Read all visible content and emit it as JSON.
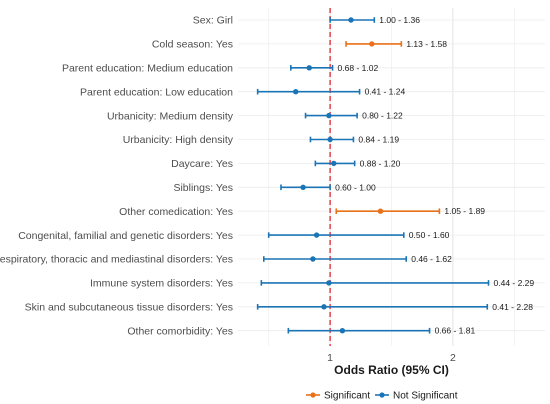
{
  "chart_data": {
    "type": "forest",
    "xlabel": "Odds Ratio (95% CI)",
    "xlim": [
      0.25,
      2.75
    ],
    "xticks": [
      1,
      2
    ],
    "reference_line": 1,
    "grid": true,
    "legend_position": "bottom",
    "legend": [
      {
        "name": "Significant",
        "color": "#E8711A"
      },
      {
        "name": "Not Significant",
        "color": "#1B74B5"
      }
    ],
    "rows": [
      {
        "label": "Sex: Girl",
        "or": 1.17,
        "lo": 1.0,
        "hi": 1.36,
        "ci_text": "1.00 - 1.36",
        "significant": false
      },
      {
        "label": "Cold season: Yes",
        "or": 1.34,
        "lo": 1.13,
        "hi": 1.58,
        "ci_text": "1.13 - 1.58",
        "significant": true
      },
      {
        "label": "Parent education: Medium education",
        "or": 0.83,
        "lo": 0.68,
        "hi": 1.02,
        "ci_text": "0.68 - 1.02",
        "significant": false
      },
      {
        "label": "Parent education: Low education",
        "or": 0.72,
        "lo": 0.41,
        "hi": 1.24,
        "ci_text": "0.41 - 1.24",
        "significant": false
      },
      {
        "label": "Urbanicity: Medium density",
        "or": 0.99,
        "lo": 0.8,
        "hi": 1.22,
        "ci_text": "0.80 - 1.22",
        "significant": false
      },
      {
        "label": "Urbanicity: High density",
        "or": 1.0,
        "lo": 0.84,
        "hi": 1.19,
        "ci_text": "0.84 - 1.19",
        "significant": false
      },
      {
        "label": "Daycare: Yes",
        "or": 1.03,
        "lo": 0.88,
        "hi": 1.2,
        "ci_text": "0.88 - 1.20",
        "significant": false
      },
      {
        "label": "Siblings: Yes",
        "or": 0.78,
        "lo": 0.6,
        "hi": 1.0,
        "ci_text": "0.60 - 1.00",
        "significant": false
      },
      {
        "label": "Other comedication: Yes",
        "or": 1.41,
        "lo": 1.05,
        "hi": 1.89,
        "ci_text": "1.05 - 1.89",
        "significant": true
      },
      {
        "label": "Congenital, familial and genetic disorders: Yes",
        "or": 0.89,
        "lo": 0.5,
        "hi": 1.6,
        "ci_text": "0.50 - 1.60",
        "significant": false
      },
      {
        "label": "Respiratory, thoracic and mediastinal disorders: Yes",
        "or": 0.86,
        "lo": 0.46,
        "hi": 1.62,
        "ci_text": "0.46 - 1.62",
        "significant": false
      },
      {
        "label": "Immune system disorders: Yes",
        "or": 0.99,
        "lo": 0.44,
        "hi": 2.29,
        "ci_text": "0.44 - 2.29",
        "significant": false
      },
      {
        "label": "Skin and subcutaneous tissue disorders: Yes",
        "or": 0.95,
        "lo": 0.41,
        "hi": 2.28,
        "ci_text": "0.41 - 2.28",
        "significant": false
      },
      {
        "label": "Other comorbidity: Yes",
        "or": 1.1,
        "lo": 0.66,
        "hi": 1.81,
        "ci_text": "0.66 - 1.81",
        "significant": false
      }
    ]
  }
}
